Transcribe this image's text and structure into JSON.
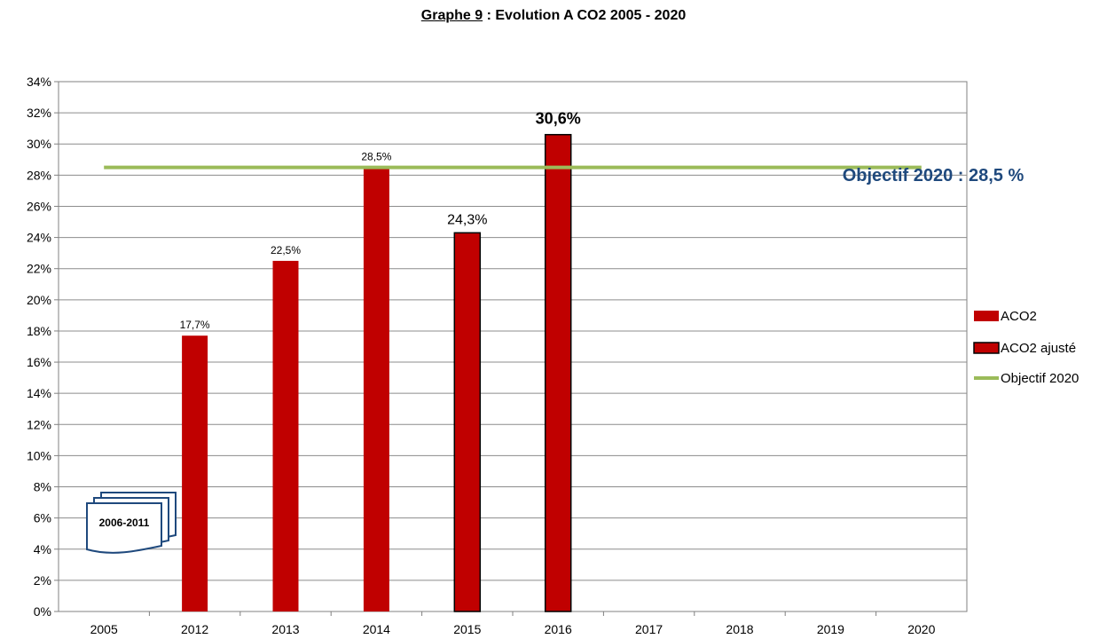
{
  "title": {
    "underlined": "Graphe 9",
    "rest": " : Evolution A CO2 2005 - 2020"
  },
  "chart_data": {
    "type": "bar",
    "categories": [
      "2005",
      "2012",
      "2013",
      "2014",
      "2015",
      "2016",
      "2017",
      "2018",
      "2019",
      "2020"
    ],
    "series": [
      {
        "name": "ACO2",
        "values": [
          null,
          17.7,
          22.5,
          28.5,
          null,
          null,
          null,
          null,
          null,
          null
        ],
        "color": "#c00000"
      },
      {
        "name": "ACO2 ajusté",
        "values": [
          null,
          null,
          null,
          null,
          24.3,
          30.6,
          null,
          null,
          null,
          null
        ],
        "color": "#c00000"
      },
      {
        "name": "Objectif 2020",
        "type": "line",
        "value": 28.5,
        "color": "#9bbb59"
      }
    ],
    "data_labels": [
      {
        "category": "2012",
        "text": "17,7%"
      },
      {
        "category": "2013",
        "text": "22,5%"
      },
      {
        "category": "2014",
        "text": "28,5%"
      },
      {
        "category": "2015",
        "text": "24,3%"
      },
      {
        "category": "2016",
        "text": "30,6%"
      }
    ],
    "annotation": {
      "text": "Objectif 2020 : 28,5 %",
      "color": "#1f497d"
    },
    "badge": {
      "text": "2006-2011",
      "color": "#1f497d"
    },
    "yticks": [
      "0%",
      "2%",
      "4%",
      "6%",
      "8%",
      "10%",
      "12%",
      "14%",
      "16%",
      "18%",
      "20%",
      "22%",
      "24%",
      "26%",
      "28%",
      "30%",
      "32%",
      "34%"
    ],
    "ylim": [
      0,
      34
    ],
    "grid": true,
    "legend_position": "right"
  }
}
